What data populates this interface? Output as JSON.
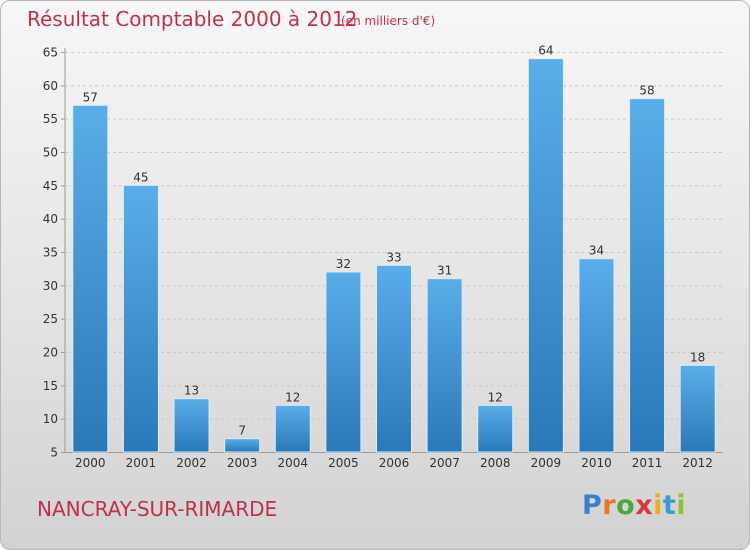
{
  "chart_data": {
    "type": "bar",
    "title": "Résultat Comptable 2000 à 2012",
    "subtitle": "(en milliers d'€)",
    "categories": [
      "2000",
      "2001",
      "2002",
      "2003",
      "2004",
      "2005",
      "2006",
      "2007",
      "2008",
      "2009",
      "2010",
      "2011",
      "2012"
    ],
    "values": [
      57,
      45,
      13,
      7,
      12,
      32,
      33,
      31,
      12,
      64,
      34,
      58,
      18
    ],
    "xlabel": "",
    "ylabel": "",
    "ylim": [
      5,
      65
    ],
    "yticks": [
      5,
      10,
      15,
      20,
      25,
      30,
      35,
      40,
      45,
      50,
      55,
      60,
      65
    ],
    "grid": true,
    "bar_color_top": "#5aaee8",
    "bar_color_bottom": "#2a78b8"
  },
  "footer": {
    "commune": "NANCRAY-SUR-RIMARDE"
  },
  "logo": {
    "letters": [
      "P",
      "r",
      "o",
      "x",
      "i",
      "t",
      "i"
    ],
    "colors": [
      "#3a7ed0",
      "#e8752a",
      "#4aa83c",
      "#d43a3a",
      "#e8b020",
      "#3a9ad8",
      "#8fc23a"
    ]
  }
}
